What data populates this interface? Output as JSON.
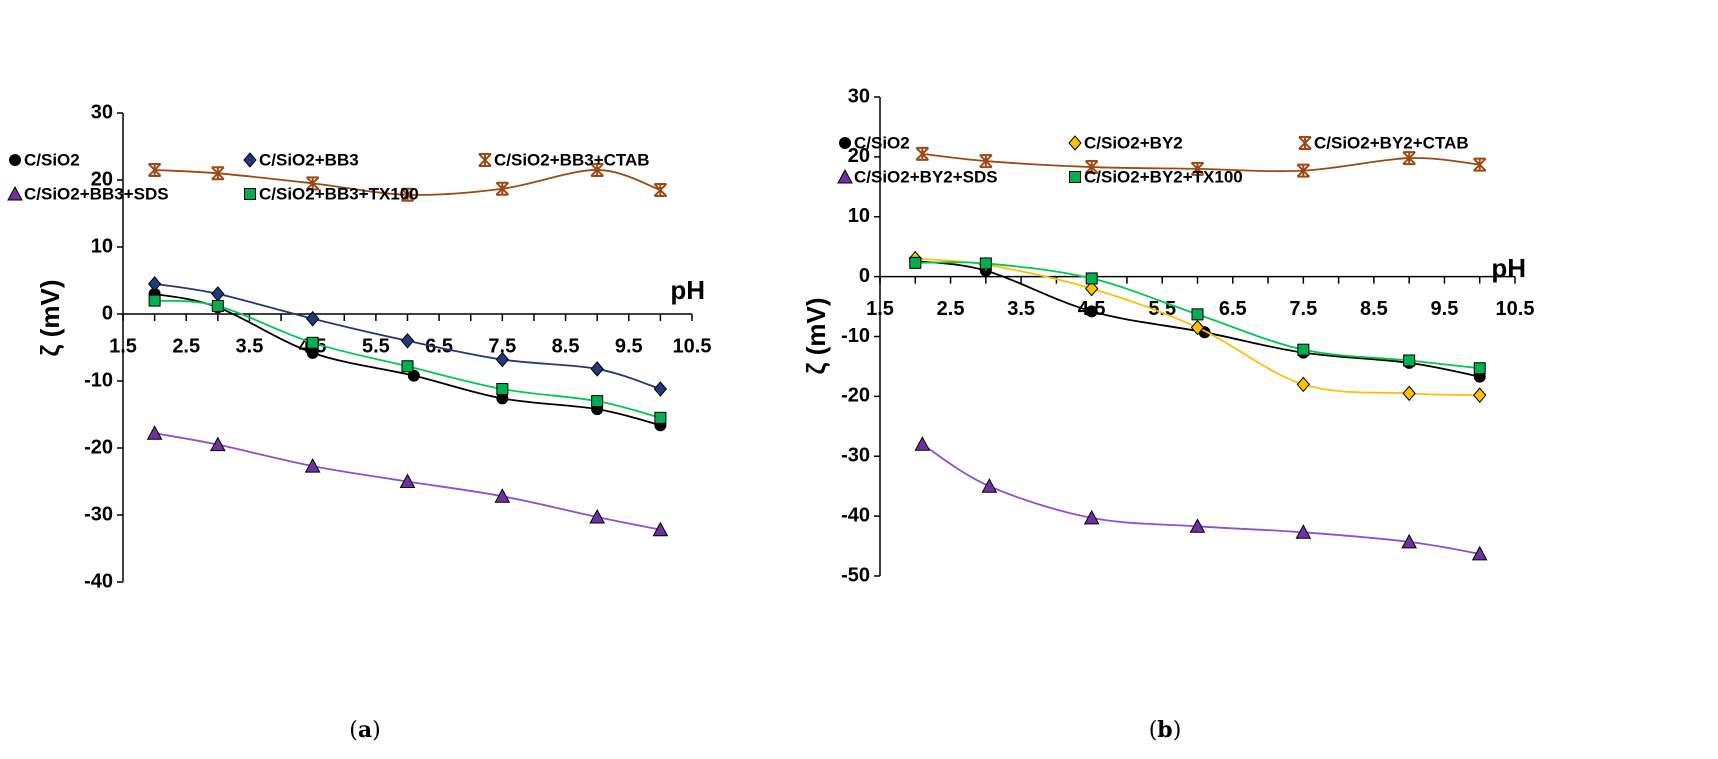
{
  "chart_data": [
    {
      "type": "line",
      "caption": "(a)",
      "caption_letter": "a",
      "xlabel": "pH",
      "ylabel": "ζ (mV)",
      "xlim": [
        1.5,
        10.5
      ],
      "ylim": [
        -40,
        30
      ],
      "xticks": [
        "1.5",
        "2.5",
        "3.5",
        "4.5",
        "5.5",
        "6.5",
        "7.5",
        "8.5",
        "9.5",
        "10.5"
      ],
      "yticks": [
        "30",
        "20",
        "10",
        "0",
        "-10",
        "-20",
        "-30",
        "-40"
      ],
      "legend_position": "top",
      "series": [
        {
          "name": "C/SiO2",
          "marker": "circle",
          "color": "#000000",
          "line": "#000000",
          "x": [
            2,
            3,
            4.5,
            6.1,
            7.5,
            9,
            10
          ],
          "y": [
            3,
            1,
            -5.8,
            -9.2,
            -12.6,
            -14.2,
            -16.6
          ]
        },
        {
          "name": "C/SiO2+BB3",
          "marker": "diamond",
          "color": "#1f3a7a",
          "line": "#1f3a7a",
          "x": [
            2,
            3,
            4.5,
            6,
            7.5,
            9,
            10
          ],
          "y": [
            4.5,
            3,
            -0.7,
            -4,
            -6.8,
            -8.2,
            -11.2
          ]
        },
        {
          "name": "C/SiO2+BB3+CTAB",
          "marker": "asterisk",
          "color": "#9c4a14",
          "line": "#9c4a14",
          "x": [
            2,
            3,
            4.5,
            6,
            7.5,
            9,
            10
          ],
          "y": [
            21.5,
            21,
            19.5,
            17.8,
            18.7,
            21.5,
            18.5
          ]
        },
        {
          "name": "C/SiO2+BB3+SDS",
          "marker": "triangle",
          "color": "#7030a0",
          "line": "#9050d0",
          "x": [
            2,
            3,
            4.5,
            6,
            7.5,
            9,
            10
          ],
          "y": [
            -17.8,
            -19.5,
            -22.7,
            -25,
            -27.2,
            -30.3,
            -32.2
          ]
        },
        {
          "name": "C/SiO2+BB3+TX100",
          "marker": "square",
          "color": "#00b050",
          "line": "#00c850",
          "x": [
            2,
            3,
            4.5,
            6,
            7.5,
            9,
            10
          ],
          "y": [
            2,
            1.2,
            -4.3,
            -7.8,
            -11.2,
            -13,
            -15.5
          ]
        }
      ]
    },
    {
      "type": "line",
      "caption": "(b)",
      "caption_letter": "b",
      "xlabel": "pH",
      "ylabel": "ζ (mV)",
      "xlim": [
        1.5,
        10.5
      ],
      "ylim": [
        -50,
        30
      ],
      "xticks": [
        "1.5",
        "2.5",
        "3.5",
        "4.5",
        "5.5",
        "6.5",
        "7.5",
        "8.5",
        "9.5",
        "10.5"
      ],
      "yticks": [
        "30",
        "20",
        "10",
        "0",
        "-10",
        "-20",
        "-30",
        "-40",
        "-50"
      ],
      "legend_position": "top",
      "series": [
        {
          "name": "C/SiO2",
          "marker": "circle",
          "color": "#000000",
          "line": "#000000",
          "x": [
            2,
            3,
            4.5,
            6.1,
            7.5,
            9,
            10
          ],
          "y": [
            2.6,
            1,
            -5.8,
            -9.3,
            -12.7,
            -14.4,
            -16.7
          ]
        },
        {
          "name": "C/SiO2+BY2",
          "marker": "diamond",
          "color": "#ffc000",
          "line": "#ffc000",
          "x": [
            2,
            3,
            4.5,
            6,
            7.5,
            9,
            10
          ],
          "y": [
            3,
            2,
            -2,
            -8.5,
            -18,
            -19.5,
            -19.8
          ]
        },
        {
          "name": "C/SiO2+BY2+CTAB",
          "marker": "asterisk",
          "color": "#9c4a14",
          "line": "#9c4a14",
          "x": [
            2.1,
            3,
            4.5,
            6,
            7.5,
            9,
            10
          ],
          "y": [
            20.5,
            19.3,
            18.3,
            18,
            17.7,
            19.8,
            18.7
          ]
        },
        {
          "name": "C/SiO2+BY2+SDS",
          "marker": "triangle",
          "color": "#7030a0",
          "line": "#9050d0",
          "x": [
            2.1,
            3.05,
            4.5,
            6,
            7.5,
            9,
            10
          ],
          "y": [
            -28,
            -35,
            -40.3,
            -41.7,
            -42.7,
            -44.3,
            -46.3
          ]
        },
        {
          "name": "C/SiO2+BY2+TX100",
          "marker": "square",
          "color": "#00b050",
          "line": "#00c850",
          "x": [
            2,
            3,
            4.5,
            6,
            7.5,
            9,
            10
          ],
          "y": [
            2.3,
            2.2,
            -0.3,
            -6.3,
            -12.2,
            -14,
            -15.3
          ]
        }
      ]
    }
  ]
}
